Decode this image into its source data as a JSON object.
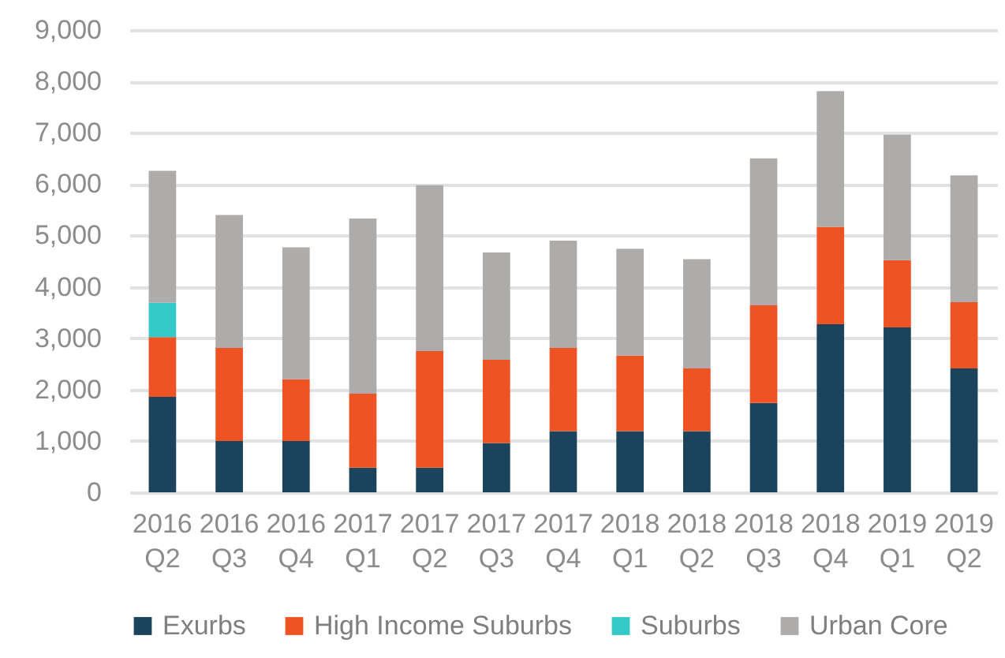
{
  "chart_data": {
    "type": "bar",
    "stacked": true,
    "categories": [
      "2016\nQ2",
      "2016\nQ3",
      "2016\nQ4",
      "2017\nQ1",
      "2017\nQ2",
      "2017\nQ3",
      "2017\nQ4",
      "2018\nQ1",
      "2018\nQ2",
      "2018\nQ3",
      "2018\nQ4",
      "2019\nQ1",
      "2019\nQ2"
    ],
    "series": [
      {
        "name": "Exurbs",
        "color": "#1b445c",
        "values": [
          1860,
          1000,
          1000,
          480,
          480,
          960,
          1190,
          1190,
          1190,
          1740,
          3270,
          3210,
          2410
        ]
      },
      {
        "name": "High Income Suburbs",
        "color": "#f05323",
        "values": [
          1160,
          1810,
          1200,
          1440,
          2270,
          1620,
          1620,
          1470,
          1220,
          1900,
          1900,
          1310,
          1290
        ]
      },
      {
        "name": "Suburbs",
        "color": "#33c9c9",
        "values": [
          670,
          null,
          null,
          null,
          null,
          null,
          null,
          null,
          null,
          null,
          null,
          null,
          null
        ]
      },
      {
        "name": "Urban Core",
        "color": "#adacaa",
        "values": [
          2570,
          2590,
          2570,
          3410,
          3230,
          2090,
          2090,
          2080,
          2130,
          2860,
          2640,
          2440,
          2470
        ]
      }
    ],
    "ylim": [
      0,
      9000
    ],
    "yticks": [
      0,
      {
        "value": 1000,
        "label": "1,000"
      },
      {
        "value": 2000,
        "label": "2,000"
      },
      {
        "value": 3000,
        "label": "3,000"
      },
      {
        "value": 4000,
        "label": "4,000"
      },
      {
        "value": 5000,
        "label": "5,000"
      },
      {
        "value": 6000,
        "label": "6,000"
      },
      {
        "value": 7000,
        "label": "7,000"
      },
      {
        "value": 8000,
        "label": "8,000"
      },
      {
        "value": 9000,
        "label": "9,000"
      }
    ],
    "grid": "y",
    "legend": "bottom"
  }
}
